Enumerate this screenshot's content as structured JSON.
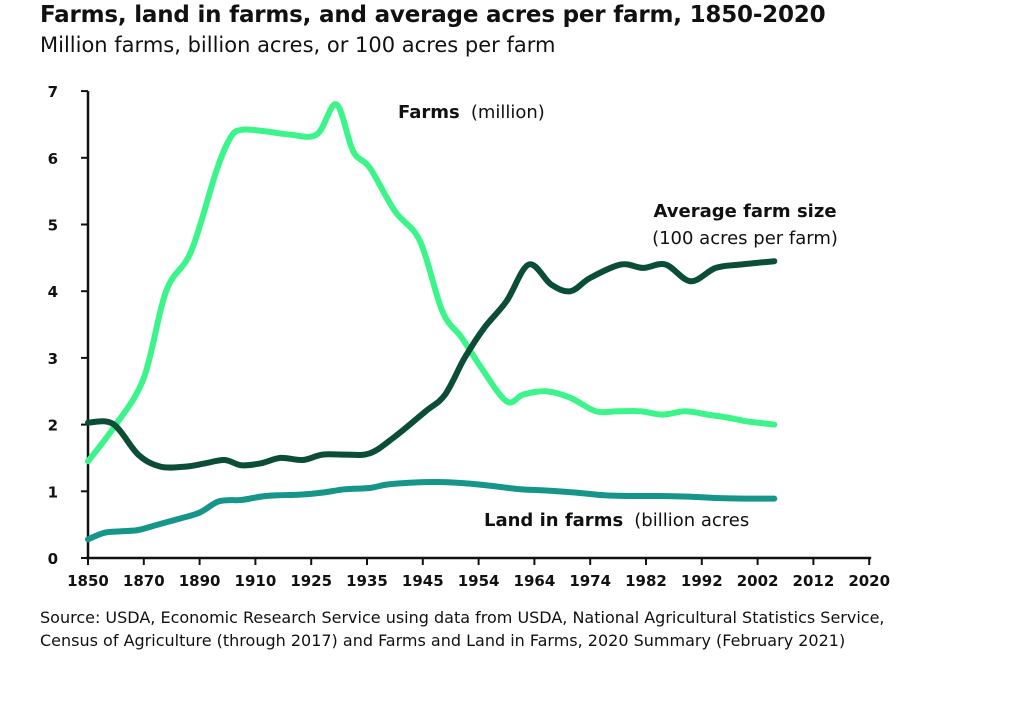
{
  "title": "Farms, land in farms, and average acres per farm, 1850-2020",
  "subtitle": "Million farms, billion acres, or 100 acres per farm",
  "source": "Source: USDA, Economic Research Service using data from USDA, National Agricultural Statistics Service, Census of Agriculture (through 2017) and Farms and Land in Farms, 2020 Summary (February 2021)",
  "labels": {
    "farms_bold": "Farms",
    "farms_unit": "(million)",
    "size_bold": "Average farm size",
    "size_unit": "(100 acres per farm)",
    "land_bold": "Land in farms",
    "land_unit": "(billion acres"
  },
  "colors": {
    "farms": "#3cf58a",
    "avg_size": "#0b4d35",
    "land": "#16958a",
    "axis": "#111111"
  },
  "chart_data": {
    "type": "line",
    "x_ticks": [
      "1850",
      "1870",
      "1890",
      "1910",
      "1925",
      "1935",
      "1945",
      "1954",
      "1964",
      "1974",
      "1982",
      "1992",
      "2002",
      "2012",
      "2020"
    ],
    "ylim": [
      0,
      7
    ],
    "y_ticks": [
      "0",
      "1",
      "2",
      "3",
      "4",
      "5",
      "6",
      "7"
    ],
    "series": [
      {
        "name": "Farms",
        "unit": "(million)",
        "color_key": "farms",
        "points": [
          [
            0,
            1.45
          ],
          [
            0.5,
            2.0
          ],
          [
            1,
            2.7
          ],
          [
            1.4,
            4.0
          ],
          [
            1.85,
            4.6
          ],
          [
            2.3,
            5.8
          ],
          [
            2.55,
            6.3
          ],
          [
            2.75,
            6.42
          ],
          [
            3.15,
            6.4
          ],
          [
            3.6,
            6.35
          ],
          [
            4.1,
            6.35
          ],
          [
            4.45,
            6.8
          ],
          [
            4.75,
            6.1
          ],
          [
            5.05,
            5.85
          ],
          [
            5.5,
            5.2
          ],
          [
            5.95,
            4.75
          ],
          [
            6.35,
            3.7
          ],
          [
            6.7,
            3.3
          ],
          [
            7.05,
            2.85
          ],
          [
            7.5,
            2.35
          ],
          [
            7.8,
            2.45
          ],
          [
            8.2,
            2.5
          ],
          [
            8.65,
            2.4
          ],
          [
            9.1,
            2.2
          ],
          [
            9.5,
            2.2
          ],
          [
            9.9,
            2.2
          ],
          [
            10.3,
            2.15
          ],
          [
            10.7,
            2.2
          ],
          [
            11.1,
            2.15
          ],
          [
            11.5,
            2.1
          ],
          [
            11.8,
            2.05
          ],
          [
            12.3,
            2.0
          ]
        ]
      },
      {
        "name": "Average farm size",
        "unit": "(100 acres per farm)",
        "color_key": "avg_size",
        "points": [
          [
            0,
            2.03
          ],
          [
            0.45,
            2.01
          ],
          [
            0.9,
            1.55
          ],
          [
            1.3,
            1.37
          ],
          [
            1.75,
            1.37
          ],
          [
            2.1,
            1.42
          ],
          [
            2.45,
            1.47
          ],
          [
            2.75,
            1.39
          ],
          [
            3.1,
            1.42
          ],
          [
            3.45,
            1.5
          ],
          [
            3.85,
            1.47
          ],
          [
            4.2,
            1.55
          ],
          [
            4.6,
            1.55
          ],
          [
            5.05,
            1.57
          ],
          [
            5.5,
            1.82
          ],
          [
            6.05,
            2.2
          ],
          [
            6.4,
            2.45
          ],
          [
            6.75,
            3.0
          ],
          [
            7.1,
            3.45
          ],
          [
            7.5,
            3.85
          ],
          [
            7.9,
            4.4
          ],
          [
            8.3,
            4.1
          ],
          [
            8.65,
            4.0
          ],
          [
            9.0,
            4.2
          ],
          [
            9.55,
            4.4
          ],
          [
            9.95,
            4.35
          ],
          [
            10.35,
            4.4
          ],
          [
            10.8,
            4.15
          ],
          [
            11.25,
            4.35
          ],
          [
            11.7,
            4.4
          ],
          [
            12.3,
            4.45
          ]
        ]
      },
      {
        "name": "Land in farms",
        "unit": "(billion acres",
        "color_key": "land",
        "points": [
          [
            0,
            0.28
          ],
          [
            0.3,
            0.38
          ],
          [
            0.6,
            0.4
          ],
          [
            0.9,
            0.42
          ],
          [
            1.25,
            0.5
          ],
          [
            1.6,
            0.58
          ],
          [
            2.0,
            0.68
          ],
          [
            2.35,
            0.85
          ],
          [
            2.75,
            0.87
          ],
          [
            3.1,
            0.92
          ],
          [
            3.4,
            0.94
          ],
          [
            3.8,
            0.95
          ],
          [
            4.2,
            0.98
          ],
          [
            4.6,
            1.03
          ],
          [
            5.05,
            1.05
          ],
          [
            5.35,
            1.1
          ],
          [
            5.8,
            1.13
          ],
          [
            6.25,
            1.14
          ],
          [
            6.75,
            1.12
          ],
          [
            7.25,
            1.08
          ],
          [
            7.75,
            1.03
          ],
          [
            8.25,
            1.01
          ],
          [
            8.75,
            0.98
          ],
          [
            9.25,
            0.94
          ],
          [
            9.75,
            0.93
          ],
          [
            10.25,
            0.93
          ],
          [
            10.75,
            0.92
          ],
          [
            11.25,
            0.9
          ],
          [
            11.75,
            0.89
          ],
          [
            12.3,
            0.89
          ]
        ]
      }
    ]
  }
}
